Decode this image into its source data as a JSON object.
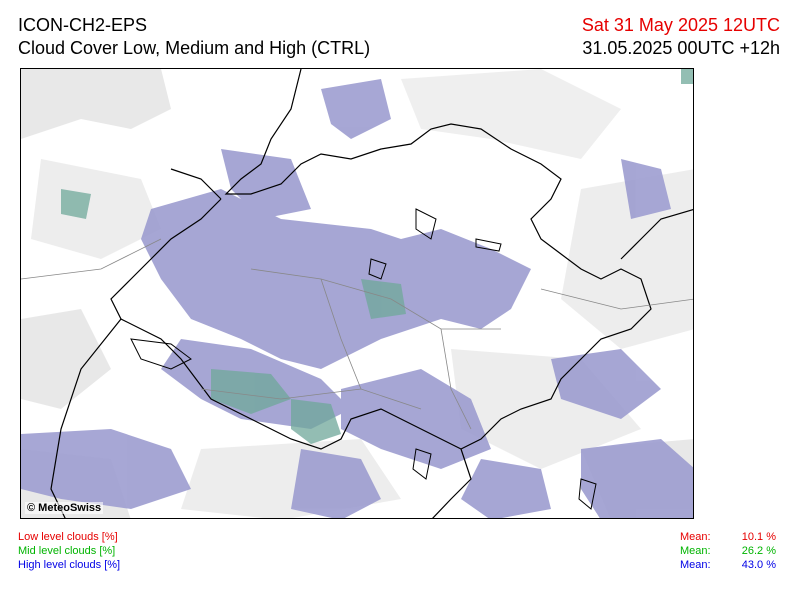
{
  "header": {
    "model": "ICON-CH2-EPS",
    "product": "Cloud Cover Low, Medium and High (CTRL)",
    "valid_time": "Sat 31 May 2025 12UTC",
    "run_time": "31.05.2025 00UTC +12h"
  },
  "map": {
    "credit": "© MeteoSwiss"
  },
  "legend": {
    "low": "Low level clouds [%]",
    "mid": "Mid level clouds [%]",
    "high": "High level clouds [%]"
  },
  "stats": {
    "mean_label": "Mean:",
    "low_mean": "10.1 %",
    "mid_mean": "26.2 %",
    "high_mean": "43.0 %"
  },
  "colors": {
    "low": "#e60000",
    "mid": "#00b400",
    "high": "#0000e6",
    "high_cloud_fill": "#9c9ccf",
    "mid_cloud_fill": "#7fbf7f",
    "thin_cloud_fill": "#e6e6e6"
  }
}
